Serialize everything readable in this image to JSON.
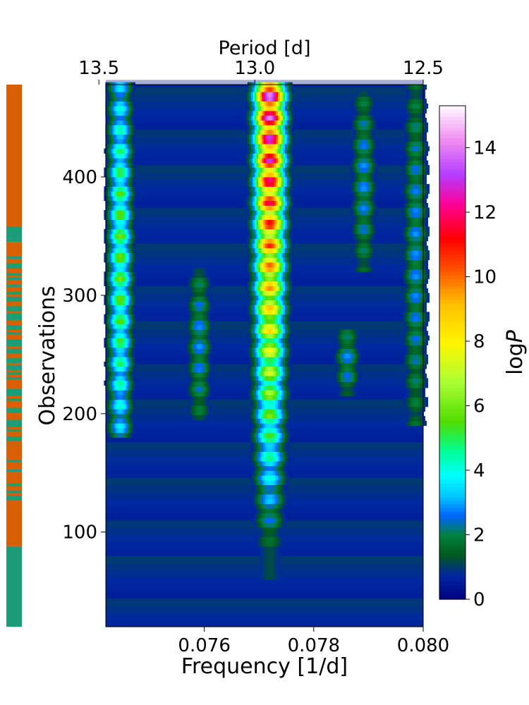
{
  "chart_data": {
    "type": "heatmap",
    "title": "",
    "xlabel": "Frequency [1/d]",
    "x2label": "Period [d]",
    "ylabel": "Observations",
    "xlim": [
      0.0742,
      0.08
    ],
    "ylim": [
      20,
      478
    ],
    "xticks": [
      0.076,
      0.078,
      0.08
    ],
    "xtick_labels": [
      "0.076",
      "0.078",
      "0.080"
    ],
    "x2ticks_period": [
      13.5,
      13.0,
      12.5
    ],
    "x2tick_labels": [
      "13.5",
      "13.0",
      "12.5"
    ],
    "yticks": [
      100,
      200,
      300,
      400
    ],
    "ytick_labels": [
      "100",
      "200",
      "300",
      "400"
    ],
    "colorbar": {
      "label": "logP",
      "label_plain": "log",
      "label_italic": "P",
      "range": [
        0,
        15.3
      ],
      "ticks": [
        0,
        2,
        4,
        6,
        8,
        10,
        12,
        14
      ],
      "tick_labels": [
        "0",
        "2",
        "4",
        "6",
        "8",
        "10",
        "12",
        "14"
      ],
      "colormap": "gist_ncar"
    },
    "peaks": [
      {
        "frequency": 0.07718,
        "obs_start": 60,
        "obs_end": 478,
        "logP_max": 15.0
      },
      {
        "frequency": 0.07445,
        "obs_start": 180,
        "obs_end": 478,
        "logP_max": 6.0
      },
      {
        "frequency": 0.0759,
        "obs_start": 195,
        "obs_end": 320,
        "logP_max": 3.0
      },
      {
        "frequency": 0.0786,
        "obs_start": 215,
        "obs_end": 270,
        "logP_max": 3.0
      },
      {
        "frequency": 0.0789,
        "obs_start": 320,
        "obs_end": 470,
        "logP_max": 3.0
      },
      {
        "frequency": 0.07985,
        "obs_start": 190,
        "obs_end": 478,
        "logP_max": 3.0
      }
    ],
    "side_strip": {
      "colors": {
        "orange": "#d95f02",
        "teal": "#1b9e77"
      },
      "segments": [
        {
          "from": 20,
          "to": 88,
          "class": "teal"
        },
        {
          "from": 88,
          "to": 125,
          "class": "orange"
        },
        {
          "from": 125,
          "to": 345,
          "class": "mixed"
        },
        {
          "from": 345,
          "to": 358,
          "class": "teal"
        },
        {
          "from": 358,
          "to": 478,
          "class": "orange"
        }
      ]
    }
  }
}
